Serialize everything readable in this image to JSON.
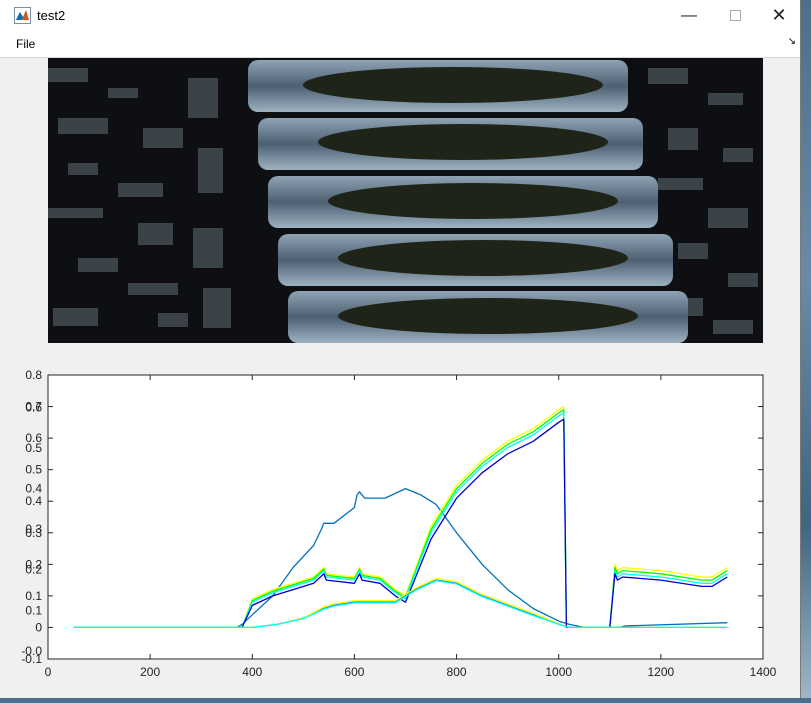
{
  "window": {
    "title": "test2",
    "icon": "matlab-figure-icon",
    "controls": [
      "minimize-icon",
      "maximize-icon",
      "close-icon"
    ]
  },
  "menu": {
    "file_label": "File",
    "dock_icon": "dock-arrow-icon"
  },
  "image_panel": {
    "content": "hyperspectral scan image",
    "colors": {
      "background": "#0c0e10",
      "tray": "#5c7184",
      "sample": "#1f2419"
    }
  },
  "chart_data": {
    "type": "line",
    "x_ticks": [
      "0",
      "200",
      "400",
      "600",
      "800",
      "1000",
      "1200",
      "1400"
    ],
    "y_ticks_primary": [
      "-0.1",
      "0",
      "0.1",
      "0.2",
      "0.3",
      "0.4",
      "0.5",
      "0.6",
      "0.7",
      "0.8"
    ],
    "y_ticks_overlay": [
      "-0.0",
      "0.1",
      "0.2",
      "0.3",
      "0.4",
      "0.5",
      "0.6"
    ],
    "xlim": [
      0,
      1400
    ],
    "ylim": [
      -0.1,
      0.8
    ],
    "series": [
      {
        "x": [
          50,
          370,
          380,
          400,
          440,
          480,
          520,
          535,
          540,
          560,
          600,
          605,
          610,
          620,
          660,
          700,
          730,
          760,
          800,
          850,
          900,
          950,
          1000,
          1020,
          1050,
          1100,
          1120,
          1130,
          1330
        ],
        "y": [
          0,
          0,
          0.01,
          0.04,
          0.1,
          0.19,
          0.26,
          0.31,
          0.33,
          0.33,
          0.38,
          0.42,
          0.43,
          0.41,
          0.41,
          0.44,
          0.42,
          0.39,
          0.3,
          0.2,
          0.12,
          0.06,
          0.02,
          0.01,
          0.0,
          0.0,
          0.0,
          0.005,
          0.015
        ],
        "color": "#0072BD"
      },
      {
        "x": [
          50,
          370,
          380,
          400,
          440,
          480,
          520,
          540,
          545,
          600,
          610,
          615,
          650,
          680,
          700,
          750,
          800,
          850,
          900,
          950,
          1000,
          1010,
          1015,
          1020,
          1100,
          1110,
          1115,
          1125,
          1200,
          1280,
          1300,
          1330
        ],
        "y": [
          0,
          0,
          0,
          0.09,
          0.12,
          0.14,
          0.16,
          0.19,
          0.17,
          0.16,
          0.19,
          0.17,
          0.16,
          0.12,
          0.1,
          0.32,
          0.45,
          0.53,
          0.59,
          0.63,
          0.69,
          0.7,
          0.0,
          0.0,
          0.0,
          0.2,
          0.18,
          0.19,
          0.18,
          0.16,
          0.16,
          0.19
        ],
        "color": "#FFFF00"
      },
      {
        "x": [
          50,
          370,
          380,
          400,
          440,
          480,
          520,
          540,
          545,
          600,
          610,
          615,
          650,
          680,
          700,
          750,
          800,
          850,
          900,
          950,
          1000,
          1010,
          1015,
          1020,
          1100,
          1110,
          1115,
          1125,
          1200,
          1280,
          1300,
          1330
        ],
        "y": [
          0,
          0,
          0,
          0.085,
          0.115,
          0.135,
          0.155,
          0.185,
          0.165,
          0.155,
          0.185,
          0.165,
          0.155,
          0.115,
          0.095,
          0.31,
          0.44,
          0.52,
          0.58,
          0.62,
          0.68,
          0.69,
          0.0,
          0.0,
          0.0,
          0.19,
          0.17,
          0.18,
          0.17,
          0.15,
          0.15,
          0.18
        ],
        "color": "#00FF00"
      },
      {
        "x": [
          50,
          370,
          380,
          400,
          440,
          480,
          520,
          540,
          545,
          600,
          610,
          615,
          650,
          680,
          700,
          750,
          800,
          850,
          900,
          950,
          1000,
          1010,
          1015,
          1020,
          1100,
          1110,
          1115,
          1125,
          1200,
          1280,
          1300,
          1330
        ],
        "y": [
          0,
          0,
          0,
          0.08,
          0.11,
          0.13,
          0.15,
          0.18,
          0.16,
          0.15,
          0.18,
          0.16,
          0.15,
          0.11,
          0.09,
          0.3,
          0.43,
          0.51,
          0.57,
          0.61,
          0.67,
          0.68,
          0.0,
          0.0,
          0.0,
          0.18,
          0.16,
          0.17,
          0.16,
          0.14,
          0.14,
          0.17
        ],
        "color": "#00FFFF"
      },
      {
        "x": [
          50,
          370,
          380,
          400,
          440,
          480,
          520,
          540,
          545,
          600,
          610,
          615,
          650,
          680,
          700,
          750,
          800,
          850,
          900,
          950,
          1000,
          1010,
          1015,
          1020,
          1100,
          1110,
          1115,
          1125,
          1200,
          1280,
          1300,
          1330
        ],
        "y": [
          0,
          0,
          0,
          0.07,
          0.1,
          0.12,
          0.14,
          0.17,
          0.15,
          0.14,
          0.17,
          0.15,
          0.14,
          0.1,
          0.08,
          0.28,
          0.41,
          0.49,
          0.55,
          0.59,
          0.65,
          0.66,
          0.0,
          0.0,
          0.0,
          0.17,
          0.15,
          0.16,
          0.15,
          0.13,
          0.13,
          0.16
        ],
        "color": "#0000CD"
      },
      {
        "x": [
          50,
          370,
          400,
          450,
          500,
          540,
          560,
          600,
          640,
          680,
          720,
          760,
          800,
          850,
          900,
          950,
          1000,
          1020,
          1050,
          1100,
          1200,
          1330
        ],
        "y": [
          0,
          0,
          0,
          0.01,
          0.03,
          0.06,
          0.07,
          0.08,
          0.08,
          0.08,
          0.12,
          0.15,
          0.14,
          0.1,
          0.07,
          0.04,
          0.01,
          0.0,
          0.0,
          0.0,
          0.0,
          0.0
        ],
        "color": "#0072BD"
      },
      {
        "x": [
          50,
          370,
          400,
          450,
          500,
          540,
          560,
          600,
          640,
          680,
          720,
          760,
          800,
          850,
          900,
          950,
          1000,
          1020,
          1050,
          1100,
          1200,
          1330
        ],
        "y": [
          0,
          0,
          0,
          0.01,
          0.03,
          0.065,
          0.075,
          0.085,
          0.085,
          0.085,
          0.125,
          0.155,
          0.145,
          0.105,
          0.075,
          0.045,
          0.012,
          0.0,
          0.0,
          0.0,
          0.0,
          0.0
        ],
        "color": "#FFFF00"
      },
      {
        "x": [
          50,
          370,
          400,
          450,
          500,
          540,
          560,
          600,
          640,
          680,
          720,
          760,
          800,
          850,
          900,
          950,
          1000,
          1020,
          1050,
          1100,
          1200,
          1330
        ],
        "y": [
          0,
          0,
          0,
          0.01,
          0.028,
          0.058,
          0.068,
          0.078,
          0.078,
          0.078,
          0.118,
          0.148,
          0.138,
          0.098,
          0.068,
          0.038,
          0.01,
          0.0,
          0.0,
          0.0,
          0.0,
          0.0
        ],
        "color": "#00FFFF"
      }
    ]
  }
}
